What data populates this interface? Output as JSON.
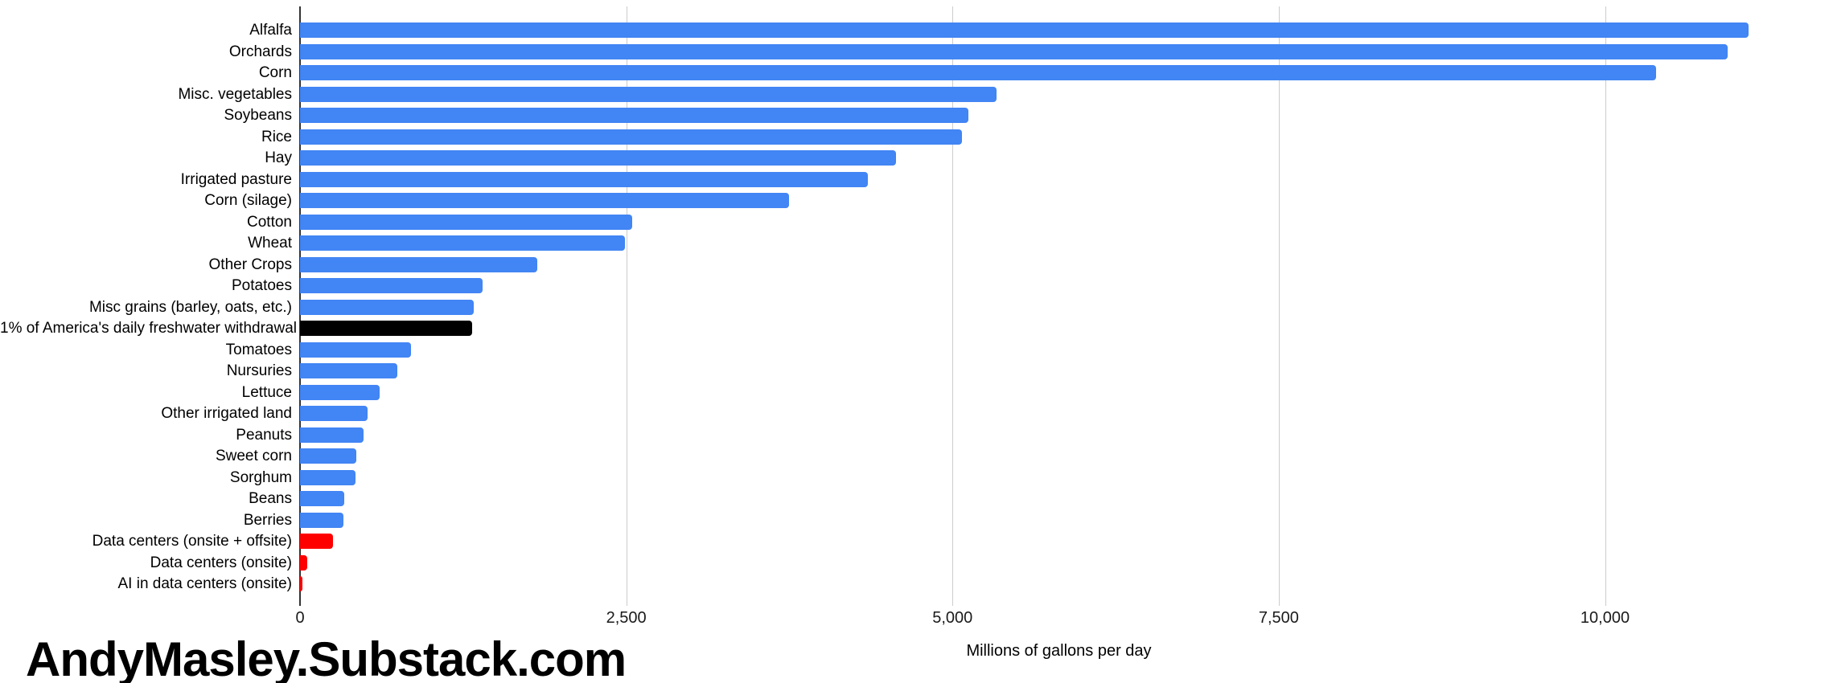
{
  "chart_data": {
    "type": "bar",
    "orientation": "horizontal",
    "title": "",
    "xlabel": "Millions of gallons per day",
    "ylabel": "",
    "watermark": "AndyMasley.Substack.com",
    "xlim": [
      0,
      11630
    ],
    "grid": true,
    "x_ticks": [
      {
        "value": 0,
        "label": "0"
      },
      {
        "value": 2500,
        "label": "2,500"
      },
      {
        "value": 5000,
        "label": "5,000"
      },
      {
        "value": 7500,
        "label": "7,500"
      },
      {
        "value": 10000,
        "label": "10,000"
      }
    ],
    "colors": {
      "bar_default": "#4285f4",
      "bar_highlight": "#000000",
      "bar_datacenter": "#ff0000",
      "gridline": "#cccccc",
      "axis": "#333333"
    },
    "bars": [
      {
        "label": "Alfalfa",
        "value": 11100,
        "color": "#4285f4"
      },
      {
        "label": "Orchards",
        "value": 10940,
        "color": "#4285f4"
      },
      {
        "label": "Corn",
        "value": 10390,
        "color": "#4285f4"
      },
      {
        "label": "Misc. vegetables",
        "value": 5340,
        "color": "#4285f4"
      },
      {
        "label": "Soybeans",
        "value": 5120,
        "color": "#4285f4"
      },
      {
        "label": "Rice",
        "value": 5070,
        "color": "#4285f4"
      },
      {
        "label": "Hay",
        "value": 4570,
        "color": "#4285f4"
      },
      {
        "label": "Irrigated pasture",
        "value": 4350,
        "color": "#4285f4"
      },
      {
        "label": "Corn (silage)",
        "value": 3750,
        "color": "#4285f4"
      },
      {
        "label": "Cotton",
        "value": 2545,
        "color": "#4285f4"
      },
      {
        "label": "Wheat",
        "value": 2490,
        "color": "#4285f4"
      },
      {
        "label": "Other Crops",
        "value": 1820,
        "color": "#4285f4"
      },
      {
        "label": "Potatoes",
        "value": 1400,
        "color": "#4285f4"
      },
      {
        "label": "Misc grains (barley, oats, etc.)",
        "value": 1330,
        "color": "#4285f4"
      },
      {
        "label": "1% of America's daily freshwater withdrawal",
        "value": 1320,
        "color": "#000000"
      },
      {
        "label": "Tomatoes",
        "value": 850,
        "color": "#4285f4"
      },
      {
        "label": "Nursuries",
        "value": 745,
        "color": "#4285f4"
      },
      {
        "label": "Lettuce",
        "value": 610,
        "color": "#4285f4"
      },
      {
        "label": "Other irrigated land",
        "value": 520,
        "color": "#4285f4"
      },
      {
        "label": "Peanuts",
        "value": 485,
        "color": "#4285f4"
      },
      {
        "label": "Sweet corn",
        "value": 430,
        "color": "#4285f4"
      },
      {
        "label": "Sorghum",
        "value": 425,
        "color": "#4285f4"
      },
      {
        "label": "Beans",
        "value": 340,
        "color": "#4285f4"
      },
      {
        "label": "Berries",
        "value": 330,
        "color": "#4285f4"
      },
      {
        "label": "Data centers (onsite + offsite)",
        "value": 250,
        "color": "#ff0000"
      },
      {
        "label": "Data centers (onsite)",
        "value": 55,
        "color": "#ff0000"
      },
      {
        "label": "AI in data centers (onsite)",
        "value": 20,
        "color": "#ff0000"
      }
    ]
  }
}
